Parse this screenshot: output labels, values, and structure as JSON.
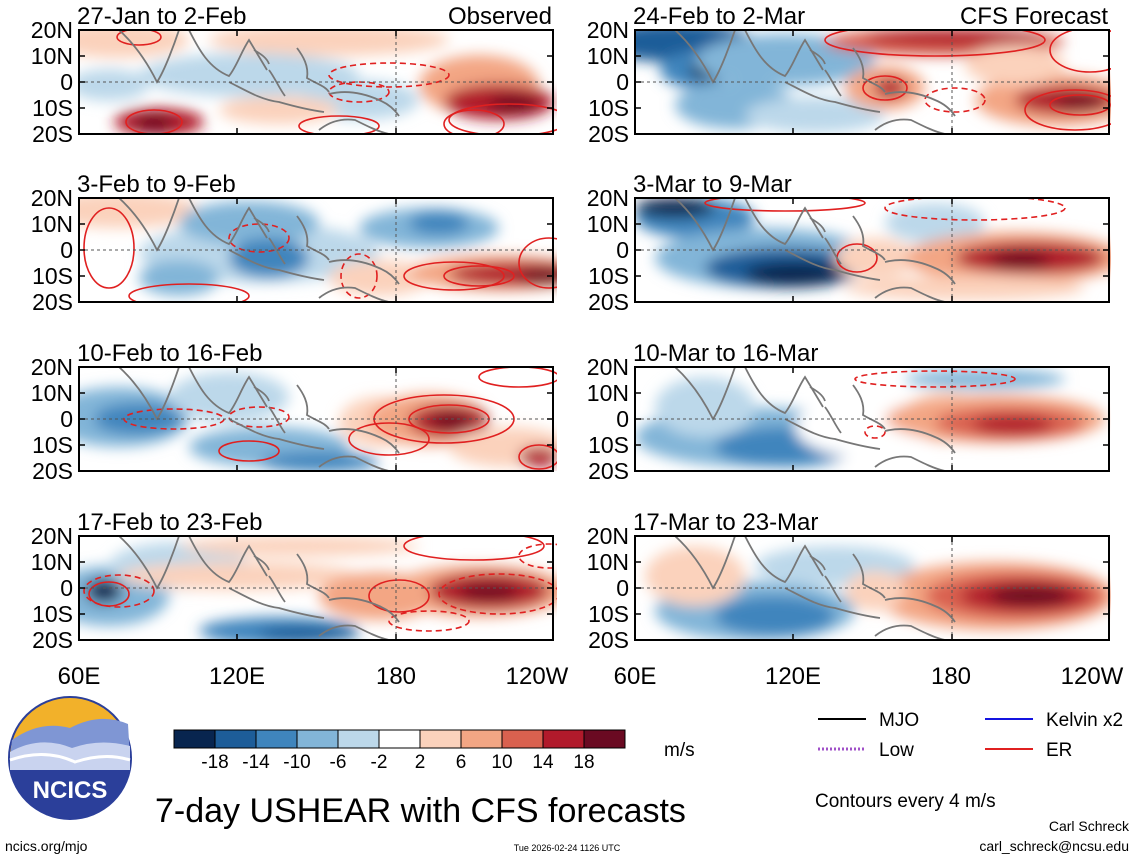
{
  "chart_data": {
    "type": "heatmap",
    "title": "7-day USHEAR with CFS forecasts",
    "variable": "USHEAR",
    "units": "m/s",
    "longitude_ticks": [
      "60E",
      "120E",
      "180",
      "120W"
    ],
    "latitude_ticks": [
      "20N",
      "10N",
      "0",
      "10S",
      "20S"
    ],
    "colorbar": {
      "tick_labels": [
        "-18",
        "-14",
        "-10",
        "-6",
        "-2",
        "2",
        "6",
        "10",
        "14",
        "18"
      ],
      "colors": [
        "#08254f",
        "#1d5d99",
        "#3f85bd",
        "#82b5d8",
        "#bcd8ea",
        "#ffffff",
        "#fbd2bc",
        "#f3a684",
        "#d9614f",
        "#b11a2b",
        "#6a0a22"
      ]
    },
    "columns": [
      {
        "label": "Observed"
      },
      {
        "label": "CFS Forecast"
      }
    ],
    "panels": [
      {
        "period": "27-Jan to 2-Feb",
        "source": "Observed"
      },
      {
        "period": "24-Feb to 2-Mar",
        "source": "CFS Forecast"
      },
      {
        "period": "3-Feb to 9-Feb",
        "source": "Observed"
      },
      {
        "period": "3-Mar to 9-Mar",
        "source": "CFS Forecast"
      },
      {
        "period": "10-Feb to 16-Feb",
        "source": "Observed"
      },
      {
        "period": "10-Mar to 16-Mar",
        "source": "CFS Forecast"
      },
      {
        "period": "17-Feb to 23-Feb",
        "source": "Observed"
      },
      {
        "period": "17-Mar to 23-Mar",
        "source": "CFS Forecast"
      }
    ],
    "legend": [
      {
        "label": "MJO",
        "color": "#000000",
        "style": "solid"
      },
      {
        "label": "Kelvin x2",
        "color": "#1414e0",
        "style": "solid"
      },
      {
        "label": "Low",
        "color": "#a050c8",
        "style": "dotted"
      },
      {
        "label": "ER",
        "color": "#e02020",
        "style": "solid"
      }
    ],
    "contour_note": "Contours every 4 m/s"
  },
  "logo": {
    "text": "NCICS"
  },
  "footer": {
    "url": "ncics.org/mjo",
    "timestamp": "Tue 2026-02-24 1126 UTC",
    "author": "Carl Schreck",
    "email": "carl_schreck@ncsu.edu"
  }
}
